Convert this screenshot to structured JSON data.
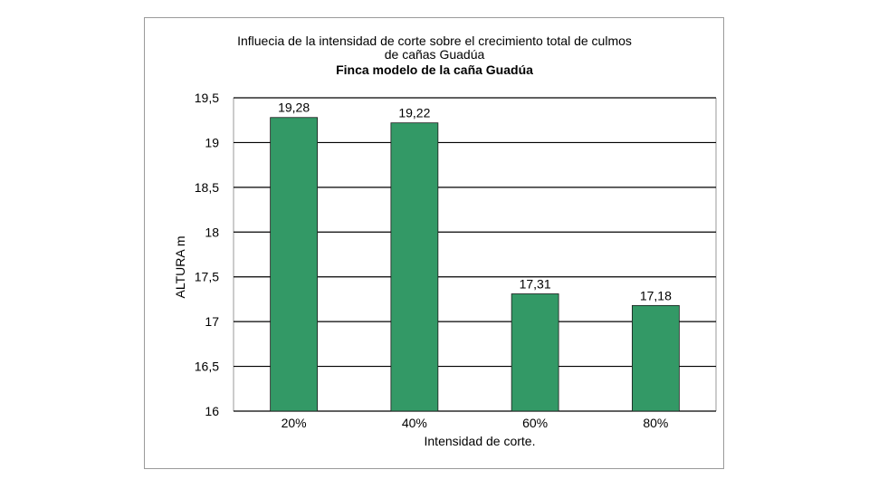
{
  "chart_data": {
    "type": "bar",
    "title_lines": [
      "Influecia de la intensidad de corte sobre el crecimiento total de culmos",
      "de cañas Guadúa"
    ],
    "subtitle": "Finca modelo de la caña Guadúa",
    "categories": [
      "20%",
      "40%",
      "60%",
      "80%"
    ],
    "values": [
      19.28,
      19.22,
      17.31,
      17.18
    ],
    "data_labels": [
      "19,28",
      "19,22",
      "17,31",
      "17,18"
    ],
    "xlabel": "Intensidad de corte.",
    "ylabel": "ALTURA  m",
    "ylim": [
      16,
      19.5
    ],
    "yticks": [
      16,
      16.5,
      17,
      17.5,
      18,
      18.5,
      19,
      19.5
    ],
    "ytick_labels": [
      "16",
      "16,5",
      "17",
      "17,5",
      "18",
      "18,5",
      "19",
      "19,5"
    ],
    "grid": true,
    "legend": "none",
    "bar_color": "#339966",
    "grid_color": "#000000"
  }
}
